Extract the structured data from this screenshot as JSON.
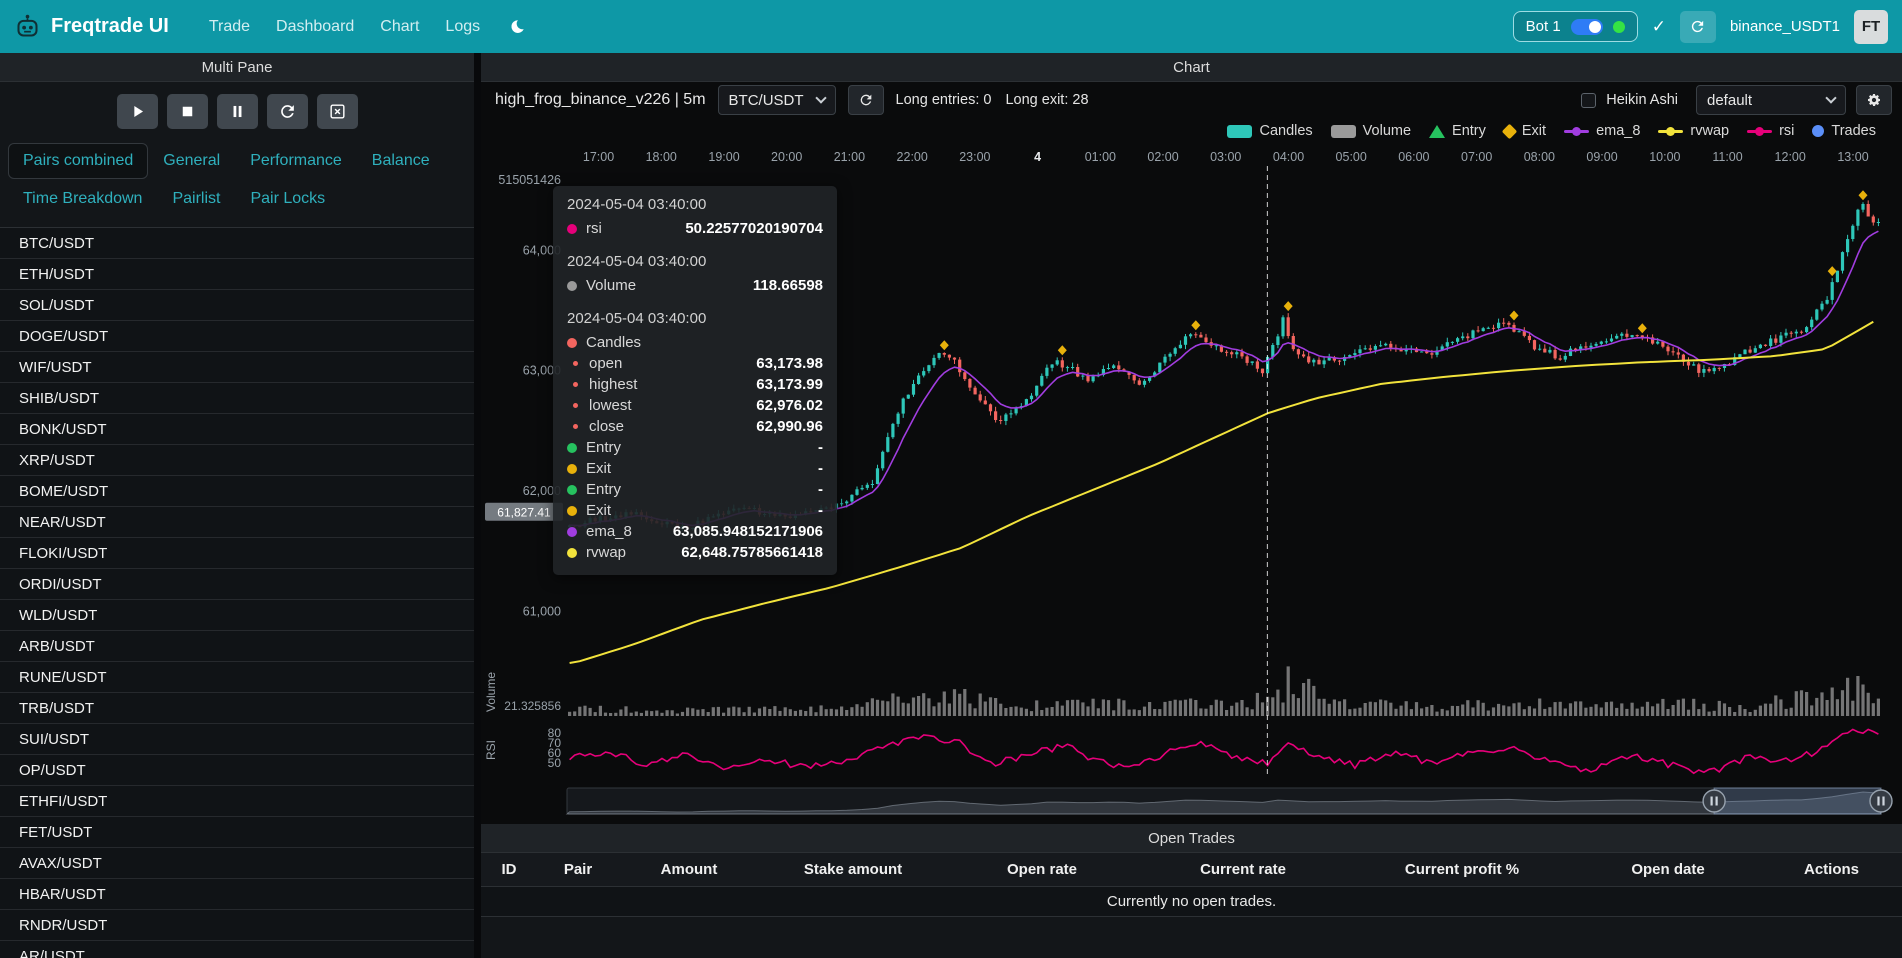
{
  "colors": {
    "navbar": "#0e98a6",
    "up": "#2ec7b9",
    "down": "#f3655f",
    "ema_8": "#a13de0",
    "rvwap": "#f2e33c",
    "rsi": "#e6007a",
    "volume": "#9a9a9a",
    "entry": "#26c25f",
    "exit": "#e8b10b",
    "trades": "#5b8ff9",
    "online": "#35e345",
    "toggle_on": "#2e7cf6"
  },
  "navbar": {
    "brand": "Freqtrade UI",
    "links": [
      "Trade",
      "Dashboard",
      "Chart",
      "Logs"
    ],
    "bot_name": "Bot 1",
    "login": "binance_USDT1",
    "avatar": "FT"
  },
  "multi_pane": {
    "title": "Multi Pane",
    "controls": [
      "play",
      "stop",
      "pause",
      "reload",
      "chart-x"
    ],
    "tabs": [
      "Pairs combined",
      "General",
      "Performance",
      "Balance",
      "Time Breakdown",
      "Pairlist",
      "Pair Locks"
    ],
    "active_tab": "Pairs combined",
    "pairs": [
      "BTC/USDT",
      "ETH/USDT",
      "SOL/USDT",
      "DOGE/USDT",
      "WIF/USDT",
      "SHIB/USDT",
      "BONK/USDT",
      "XRP/USDT",
      "BOME/USDT",
      "NEAR/USDT",
      "FLOKI/USDT",
      "ORDI/USDT",
      "WLD/USDT",
      "ARB/USDT",
      "RUNE/USDT",
      "TRB/USDT",
      "SUI/USDT",
      "OP/USDT",
      "ETHFI/USDT",
      "FET/USDT",
      "AVAX/USDT",
      "HBAR/USDT",
      "RNDR/USDT",
      "AR/USDT"
    ]
  },
  "chart_panel": {
    "title": "Chart",
    "strategy_label": "high_frog_binance_v226 | 5m",
    "pair_select": "BTC/USDT",
    "long_entries_label": "Long entries: 0",
    "long_exit_label": "Long exit: 28",
    "heikin_ashi_label": "Heikin Ashi",
    "heikin_ashi_checked": false,
    "plot_config_select": "default",
    "legend": [
      {
        "label": "Candles",
        "type": "candle",
        "color": "#2ec7b9"
      },
      {
        "label": "Volume",
        "type": "rect",
        "color": "#9a9a9a"
      },
      {
        "label": "Entry",
        "type": "triangle",
        "color": "#26c25f"
      },
      {
        "label": "Exit",
        "type": "diamond",
        "color": "#e8b10b"
      },
      {
        "label": "ema_8",
        "type": "line",
        "color": "#a13de0"
      },
      {
        "label": "rvwap",
        "type": "line",
        "color": "#f2e33c"
      },
      {
        "label": "rsi",
        "type": "line",
        "color": "#e6007a"
      },
      {
        "label": "Trades",
        "type": "circle",
        "color": "#5b8ff9"
      }
    ]
  },
  "tooltip": {
    "groups": [
      {
        "timestamp": "2024-05-04 03:40:00",
        "rows": [
          {
            "label": "rsi",
            "value": "50.22577020190704",
            "color": "#e6007a"
          }
        ]
      },
      {
        "timestamp": "2024-05-04 03:40:00",
        "rows": [
          {
            "label": "Volume",
            "value": "118.66598",
            "color": "#9a9a9a"
          }
        ]
      },
      {
        "timestamp": "2024-05-04 03:40:00",
        "rows": [
          {
            "label": "Candles",
            "value": "",
            "color": "#f3655f"
          },
          {
            "label": "open",
            "value": "63,173.98",
            "color": "#f3655f",
            "sub": true
          },
          {
            "label": "highest",
            "value": "63,173.99",
            "color": "#f3655f",
            "sub": true
          },
          {
            "label": "lowest",
            "value": "62,976.02",
            "color": "#f3655f",
            "sub": true
          },
          {
            "label": "close",
            "value": "62,990.96",
            "color": "#f3655f",
            "sub": true
          },
          {
            "label": "Entry",
            "value": "-",
            "color": "#26c25f"
          },
          {
            "label": "Exit",
            "value": "-",
            "color": "#e8b10b"
          },
          {
            "label": "Entry",
            "value": "-",
            "color": "#26c25f"
          },
          {
            "label": "Exit",
            "value": "-",
            "color": "#e8b10b"
          },
          {
            "label": "ema_8",
            "value": "63,085.948152171906",
            "color": "#a13de0"
          },
          {
            "label": "rvwap",
            "value": "62,648.75785661418",
            "color": "#f2e33c"
          }
        ]
      }
    ]
  },
  "chart_data": {
    "type": "candlestick",
    "pair": "BTC/USDT",
    "timeframe": "5m",
    "num_candles": 256,
    "price_domain": [
      60580,
      64650
    ],
    "price_ticks": [
      {
        "value": 64000,
        "label": "64,000"
      },
      {
        "value": 63000,
        "label": "63,000"
      },
      {
        "value": 62000,
        "label": "62,000"
      },
      {
        "value": 61000,
        "label": "61,000"
      }
    ],
    "top_axis_label": "515051426",
    "volume_axis_label": "21.325856",
    "volume_axis_title": "Volume",
    "rsi_ticks": [
      80,
      70,
      60,
      50
    ],
    "rsi_axis_title": "RSI",
    "axis_pointer_price_label": "61,827.41",
    "axis_pointer_price": 61827.41,
    "crosshair_t": 0.533,
    "x_labels": [
      {
        "t": 0.024,
        "label": "17:00"
      },
      {
        "t": 0.0717,
        "label": "18:00"
      },
      {
        "t": 0.1195,
        "label": "19:00"
      },
      {
        "t": 0.1672,
        "label": "20:00"
      },
      {
        "t": 0.2149,
        "label": "21:00"
      },
      {
        "t": 0.2627,
        "label": "22:00"
      },
      {
        "t": 0.3104,
        "label": "23:00"
      },
      {
        "t": 0.3581,
        "label": "4",
        "major": true
      },
      {
        "t": 0.4059,
        "label": "01:00"
      },
      {
        "t": 0.4536,
        "label": "02:00"
      },
      {
        "t": 0.5013,
        "label": "03:00"
      },
      {
        "t": 0.5491,
        "label": "04:00"
      },
      {
        "t": 0.5968,
        "label": "05:00"
      },
      {
        "t": 0.6445,
        "label": "06:00"
      },
      {
        "t": 0.6923,
        "label": "07:00"
      },
      {
        "t": 0.74,
        "label": "08:00"
      },
      {
        "t": 0.7877,
        "label": "09:00"
      },
      {
        "t": 0.8355,
        "label": "10:00"
      },
      {
        "t": 0.8832,
        "label": "11:00"
      },
      {
        "t": 0.9309,
        "label": "12:00"
      },
      {
        "t": 0.9787,
        "label": "13:00"
      }
    ],
    "series": {
      "candles_trend_anchors": [
        [
          0,
          61700
        ],
        [
          0.05,
          61820
        ],
        [
          0.09,
          61690
        ],
        [
          0.13,
          61860
        ],
        [
          0.17,
          61780
        ],
        [
          0.21,
          61880
        ],
        [
          0.235,
          62080
        ],
        [
          0.26,
          62780
        ],
        [
          0.285,
          63160
        ],
        [
          0.3,
          63050
        ],
        [
          0.315,
          62790
        ],
        [
          0.33,
          62580
        ],
        [
          0.35,
          62720
        ],
        [
          0.375,
          63090
        ],
        [
          0.4,
          62920
        ],
        [
          0.42,
          63040
        ],
        [
          0.44,
          62860
        ],
        [
          0.46,
          63110
        ],
        [
          0.48,
          63340
        ],
        [
          0.5,
          63180
        ],
        [
          0.52,
          63100
        ],
        [
          0.534,
          62990
        ],
        [
          0.549,
          63430
        ],
        [
          0.558,
          63170
        ],
        [
          0.57,
          63060
        ],
        [
          0.6,
          63130
        ],
        [
          0.63,
          63210
        ],
        [
          0.66,
          63140
        ],
        [
          0.69,
          63290
        ],
        [
          0.72,
          63390
        ],
        [
          0.74,
          63210
        ],
        [
          0.76,
          63110
        ],
        [
          0.79,
          63260
        ],
        [
          0.82,
          63320
        ],
        [
          0.85,
          63110
        ],
        [
          0.87,
          62990
        ],
        [
          0.89,
          63070
        ],
        [
          0.91,
          63200
        ],
        [
          0.93,
          63280
        ],
        [
          0.95,
          63360
        ],
        [
          0.965,
          63620
        ],
        [
          0.98,
          64080
        ],
        [
          0.99,
          64380
        ],
        [
          1,
          64260
        ]
      ],
      "rvwap_anchors": [
        [
          0,
          60560
        ],
        [
          0.05,
          60730
        ],
        [
          0.1,
          60930
        ],
        [
          0.15,
          61070
        ],
        [
          0.2,
          61200
        ],
        [
          0.25,
          61360
        ],
        [
          0.3,
          61530
        ],
        [
          0.35,
          61790
        ],
        [
          0.4,
          62010
        ],
        [
          0.45,
          62230
        ],
        [
          0.5,
          62480
        ],
        [
          0.534,
          62649
        ],
        [
          0.57,
          62770
        ],
        [
          0.62,
          62890
        ],
        [
          0.67,
          62950
        ],
        [
          0.72,
          63000
        ],
        [
          0.77,
          63040
        ],
        [
          0.82,
          63070
        ],
        [
          0.87,
          63090
        ],
        [
          0.92,
          63120
        ],
        [
          0.96,
          63180
        ],
        [
          1,
          63430
        ]
      ],
      "rsi_anchors": [
        [
          0,
          55
        ],
        [
          0.03,
          62
        ],
        [
          0.06,
          48
        ],
        [
          0.09,
          58
        ],
        [
          0.12,
          42
        ],
        [
          0.15,
          55
        ],
        [
          0.18,
          45
        ],
        [
          0.21,
          52
        ],
        [
          0.24,
          68
        ],
        [
          0.27,
          75
        ],
        [
          0.3,
          70
        ],
        [
          0.32,
          48
        ],
        [
          0.35,
          58
        ],
        [
          0.38,
          68
        ],
        [
          0.4,
          52
        ],
        [
          0.43,
          45
        ],
        [
          0.46,
          62
        ],
        [
          0.48,
          72
        ],
        [
          0.5,
          58
        ],
        [
          0.52,
          52
        ],
        [
          0.534,
          50.2
        ],
        [
          0.549,
          72
        ],
        [
          0.57,
          55
        ],
        [
          0.6,
          48
        ],
        [
          0.63,
          60
        ],
        [
          0.66,
          50
        ],
        [
          0.69,
          62
        ],
        [
          0.72,
          65
        ],
        [
          0.75,
          50
        ],
        [
          0.78,
          42
        ],
        [
          0.81,
          58
        ],
        [
          0.84,
          48
        ],
        [
          0.87,
          40
        ],
        [
          0.9,
          55
        ],
        [
          0.93,
          52
        ],
        [
          0.96,
          65
        ],
        [
          0.98,
          85
        ],
        [
          1,
          78
        ]
      ],
      "volume_profile_anchors": [
        [
          0,
          0.2
        ],
        [
          0.08,
          0.15
        ],
        [
          0.16,
          0.18
        ],
        [
          0.22,
          0.25
        ],
        [
          0.26,
          0.55
        ],
        [
          0.3,
          0.5
        ],
        [
          0.34,
          0.3
        ],
        [
          0.4,
          0.35
        ],
        [
          0.45,
          0.28
        ],
        [
          0.5,
          0.35
        ],
        [
          0.53,
          0.45
        ],
        [
          0.549,
          1
        ],
        [
          0.58,
          0.35
        ],
        [
          0.65,
          0.25
        ],
        [
          0.7,
          0.3
        ],
        [
          0.75,
          0.35
        ],
        [
          0.8,
          0.25
        ],
        [
          0.85,
          0.32
        ],
        [
          0.9,
          0.25
        ],
        [
          0.94,
          0.45
        ],
        [
          0.97,
          0.9
        ],
        [
          1,
          0.75
        ]
      ]
    },
    "exit_marker_positions": [
      0.285,
      0.375,
      0.48,
      0.549,
      0.72,
      0.82,
      0.965,
      0.99
    ],
    "datazoom_window": [
      0.873,
      1.0
    ],
    "legend_position": "top-right"
  },
  "open_trades": {
    "title": "Open Trades",
    "columns": [
      "ID",
      "Pair",
      "Amount",
      "Stake amount",
      "Open rate",
      "Current rate",
      "Current profit %",
      "Open date",
      "Actions"
    ],
    "empty_message": "Currently no open trades."
  }
}
